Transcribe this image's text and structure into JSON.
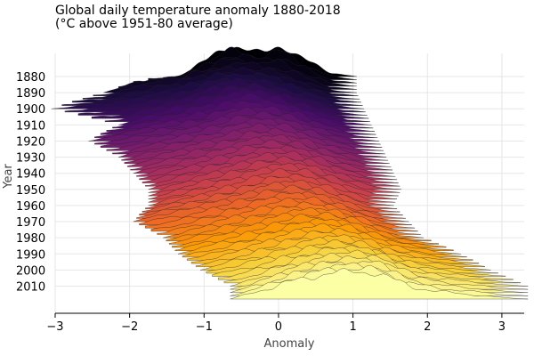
{
  "chart_data": {
    "type": "area",
    "title": "Global daily temperature anomaly 1880-2018",
    "subtitle": "(°C above 1951-80 average)",
    "xlabel": "Anomaly",
    "ylabel": "Year",
    "xlim": [
      -3,
      3.3
    ],
    "x_ticks": [
      -3,
      -2,
      -1,
      0,
      1,
      2,
      3
    ],
    "x_tick_labels": [
      "−3",
      "−2",
      "−1",
      "0",
      "1",
      "2",
      "3"
    ],
    "y_tick_years": [
      1880,
      1890,
      1900,
      1910,
      1920,
      1930,
      1940,
      1950,
      1960,
      1970,
      1980,
      1990,
      2000,
      2010
    ],
    "grid": true,
    "colormap": [
      "#000004",
      "#1b0c41",
      "#4a0c6b",
      "#781c6d",
      "#a52c60",
      "#cf4446",
      "#ed6925",
      "#fb9b06",
      "#f7d13d",
      "#fcffa4"
    ],
    "series": [
      {
        "name": "1880",
        "values": [
          {
            "x": -1,
            "y": 0.3
          },
          {
            "x": -0.62,
            "y": 0.62
          },
          {
            "x": -0.25,
            "y": 0.48
          },
          {
            "x": 0.02,
            "y": 0.62
          },
          {
            "x": 0.3,
            "y": 0.38
          },
          {
            "x": 0.7,
            "y": 0.08
          }
        ]
      },
      {
        "name": "1890",
        "values": [
          {
            "x": -2.0,
            "y": 0.15
          },
          {
            "x": -1.1,
            "y": 0.35
          },
          {
            "x": -0.55,
            "y": 0.5
          },
          {
            "x": -0.15,
            "y": 0.45
          },
          {
            "x": 0.35,
            "y": 0.22
          },
          {
            "x": 0.7,
            "y": 0.05
          }
        ]
      },
      {
        "name": "1900",
        "values": [
          {
            "x": -2.7,
            "y": 0.05
          },
          {
            "x": -1.3,
            "y": 0.3
          },
          {
            "x": -0.6,
            "y": 0.55
          },
          {
            "x": -0.3,
            "y": 0.5
          },
          {
            "x": 0.2,
            "y": 0.3
          },
          {
            "x": 0.8,
            "y": 0.05
          }
        ]
      },
      {
        "name": "1910",
        "values": [
          {
            "x": -1.8,
            "y": 0.15
          },
          {
            "x": -0.9,
            "y": 0.4
          },
          {
            "x": -0.45,
            "y": 0.58
          },
          {
            "x": -0.1,
            "y": 0.5
          },
          {
            "x": 0.4,
            "y": 0.25
          },
          {
            "x": 0.9,
            "y": 0.05
          }
        ]
      },
      {
        "name": "1920",
        "values": [
          {
            "x": -2.2,
            "y": 0.1
          },
          {
            "x": -1.0,
            "y": 0.35
          },
          {
            "x": -0.4,
            "y": 0.55
          },
          {
            "x": 0.0,
            "y": 0.5
          },
          {
            "x": 0.5,
            "y": 0.25
          },
          {
            "x": 1.0,
            "y": 0.05
          }
        ]
      },
      {
        "name": "1930",
        "values": [
          {
            "x": -1.8,
            "y": 0.15
          },
          {
            "x": -0.8,
            "y": 0.4
          },
          {
            "x": -0.3,
            "y": 0.55
          },
          {
            "x": 0.1,
            "y": 0.5
          },
          {
            "x": 0.6,
            "y": 0.25
          },
          {
            "x": 1.1,
            "y": 0.05
          }
        ]
      },
      {
        "name": "1940",
        "values": [
          {
            "x": -1.6,
            "y": 0.15
          },
          {
            "x": -0.7,
            "y": 0.4
          },
          {
            "x": -0.2,
            "y": 0.55
          },
          {
            "x": 0.2,
            "y": 0.5
          },
          {
            "x": 0.7,
            "y": 0.25
          },
          {
            "x": 1.2,
            "y": 0.05
          }
        ]
      },
      {
        "name": "1950",
        "values": [
          {
            "x": -1.4,
            "y": 0.15
          },
          {
            "x": -0.6,
            "y": 0.4
          },
          {
            "x": -0.1,
            "y": 0.55
          },
          {
            "x": 0.3,
            "y": 0.5
          },
          {
            "x": 0.8,
            "y": 0.25
          },
          {
            "x": 1.3,
            "y": 0.05
          }
        ]
      },
      {
        "name": "1960",
        "values": [
          {
            "x": -1.4,
            "y": 0.15
          },
          {
            "x": -0.5,
            "y": 0.4
          },
          {
            "x": 0.0,
            "y": 0.55
          },
          {
            "x": 0.35,
            "y": 0.5
          },
          {
            "x": 0.85,
            "y": 0.25
          },
          {
            "x": 1.2,
            "y": 0.05
          }
        ]
      },
      {
        "name": "1970",
        "values": [
          {
            "x": -1.6,
            "y": 0.15
          },
          {
            "x": -0.5,
            "y": 0.4
          },
          {
            "x": 0.05,
            "y": 0.55
          },
          {
            "x": 0.45,
            "y": 0.5
          },
          {
            "x": 0.95,
            "y": 0.25
          },
          {
            "x": 1.4,
            "y": 0.05
          }
        ]
      },
      {
        "name": "1980",
        "values": [
          {
            "x": -1.2,
            "y": 0.15
          },
          {
            "x": -0.3,
            "y": 0.4
          },
          {
            "x": 0.25,
            "y": 0.55
          },
          {
            "x": 0.7,
            "y": 0.5
          },
          {
            "x": 1.2,
            "y": 0.25
          },
          {
            "x": 1.6,
            "y": 0.05
          }
        ]
      },
      {
        "name": "1990",
        "values": [
          {
            "x": -1.0,
            "y": 0.15
          },
          {
            "x": -0.1,
            "y": 0.4
          },
          {
            "x": 0.45,
            "y": 0.55
          },
          {
            "x": 0.9,
            "y": 0.5
          },
          {
            "x": 1.4,
            "y": 0.25
          },
          {
            "x": 2.1,
            "y": 0.05
          }
        ]
      },
      {
        "name": "2000",
        "values": [
          {
            "x": -0.7,
            "y": 0.15
          },
          {
            "x": 0.1,
            "y": 0.4
          },
          {
            "x": 0.65,
            "y": 0.55
          },
          {
            "x": 1.05,
            "y": 0.5
          },
          {
            "x": 1.6,
            "y": 0.25
          },
          {
            "x": 2.5,
            "y": 0.05
          }
        ]
      },
      {
        "name": "2010",
        "values": [
          {
            "x": -0.3,
            "y": 0.15
          },
          {
            "x": 0.3,
            "y": 0.4
          },
          {
            "x": 0.85,
            "y": 0.55
          },
          {
            "x": 1.2,
            "y": 0.55
          },
          {
            "x": 1.8,
            "y": 0.25
          },
          {
            "x": 3.0,
            "y": 0.03
          }
        ]
      }
    ]
  }
}
